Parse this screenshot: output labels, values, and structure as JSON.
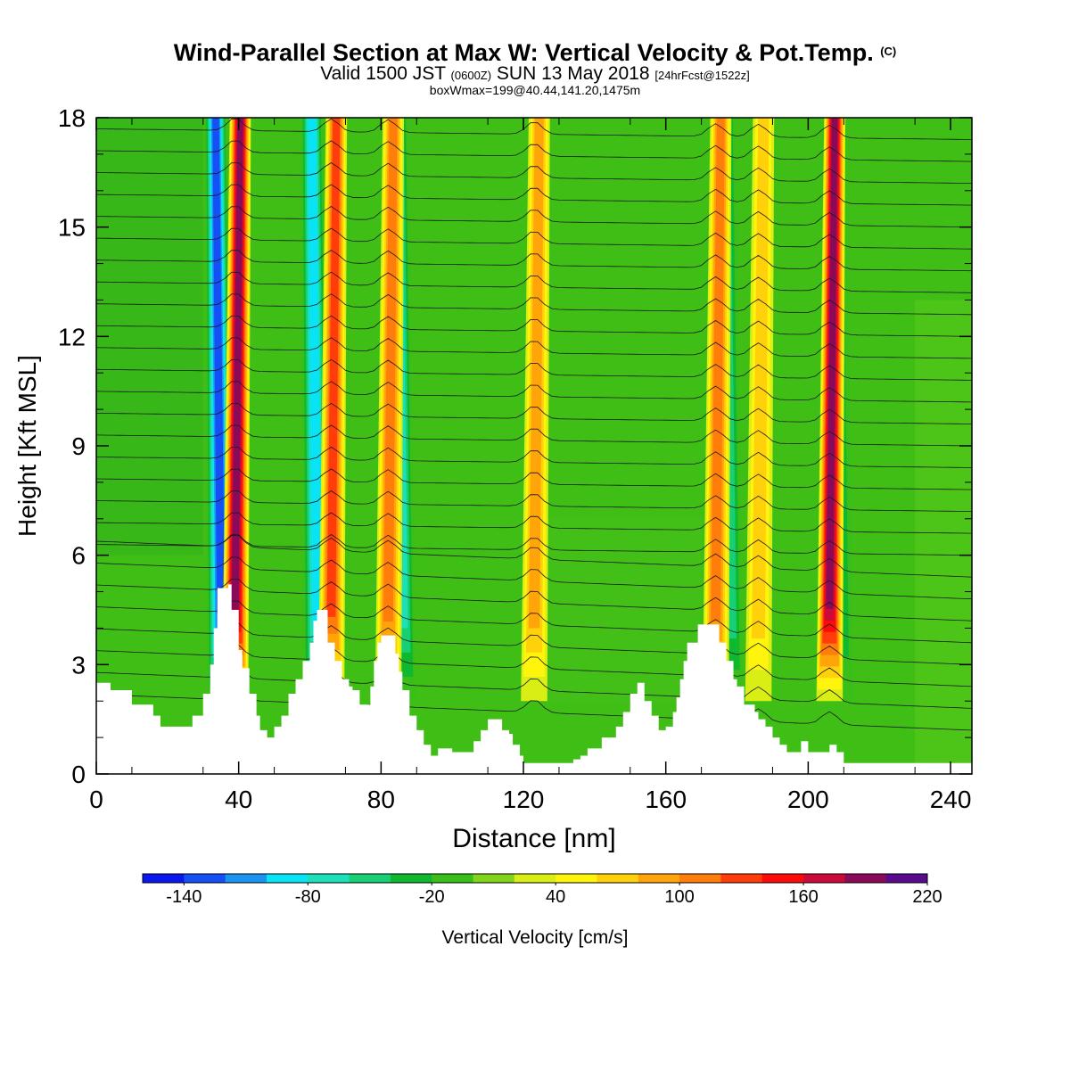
{
  "header": {
    "title_main": "Wind-Parallel Section at Max W: Vertical Velocity & Pot.Temp.",
    "title_mark": "(C)",
    "valid_a": "Valid 1500 JST",
    "valid_b": "(0600Z)",
    "valid_c": "SUN 13 May 2018",
    "valid_d": "[24hrFcst@1522z]",
    "boxinfo": "boxWmax=199@40.44,141.20,1475m"
  },
  "colorbar": {
    "label": "Vertical Velocity [cm/s]",
    "colors": [
      "#0a17ef",
      "#1450f5",
      "#1c93f0",
      "#08e3f5",
      "#1ce0b8",
      "#17cf74",
      "#10b830",
      "#39be1a",
      "#80d51a",
      "#d9ee14",
      "#fff50c",
      "#ffd10a",
      "#ffa50a",
      "#ff7d0a",
      "#ff3c0a",
      "#ff0a0a",
      "#cc0a3a",
      "#8a0a5a",
      "#5a0a8c"
    ],
    "tick_labels": [
      "-140",
      "-80",
      "-20",
      "40",
      "100",
      "160",
      "220"
    ]
  },
  "chart_data": {
    "type": "heatmap",
    "title": "Wind-Parallel Section at Max W: Vertical Velocity & Pot.Temp.",
    "xlabel": "Distance [nm]",
    "ylabel": "Height [Kft MSL]",
    "xlim": [
      0,
      246
    ],
    "ylim": [
      0,
      18
    ],
    "x_ticks": [
      0,
      40,
      80,
      120,
      160,
      200,
      240
    ],
    "y_ticks": [
      0,
      3,
      6,
      9,
      12,
      15,
      18
    ],
    "colorbar_levels": [
      -140,
      -80,
      -20,
      40,
      100,
      160,
      220
    ],
    "updraft_columns": [
      {
        "x": 39,
        "peak_cm_s": 190
      },
      {
        "x": 66,
        "peak_cm_s": 130
      },
      {
        "x": 82,
        "peak_cm_s": 110
      },
      {
        "x": 123,
        "peak_cm_s": 95
      },
      {
        "x": 174,
        "peak_cm_s": 100
      },
      {
        "x": 186,
        "peak_cm_s": 60
      },
      {
        "x": 206,
        "peak_cm_s": 199
      }
    ],
    "downdraft_columns": [
      {
        "x": 35,
        "min_cm_s": -140
      },
      {
        "x": 62,
        "min_cm_s": -110
      },
      {
        "x": 86,
        "min_cm_s": -90
      },
      {
        "x": 178,
        "min_cm_s": -60
      },
      {
        "x": 209,
        "min_cm_s": -50
      }
    ],
    "terrain_kft": [
      [
        0,
        2.5
      ],
      [
        4,
        2.3
      ],
      [
        8,
        2.3
      ],
      [
        10,
        1.9
      ],
      [
        14,
        1.9
      ],
      [
        16,
        1.6
      ],
      [
        18,
        1.3
      ],
      [
        22,
        1.3
      ],
      [
        26,
        1.3
      ],
      [
        27,
        1.6
      ],
      [
        30,
        2.2
      ],
      [
        32,
        3.0
      ],
      [
        33,
        4.0
      ],
      [
        34,
        5.1
      ],
      [
        37,
        5.2
      ],
      [
        38,
        4.5
      ],
      [
        40,
        3.4
      ],
      [
        41,
        2.9
      ],
      [
        43,
        2.2
      ],
      [
        45,
        1.6
      ],
      [
        46,
        1.2
      ],
      [
        48,
        1.0
      ],
      [
        50,
        1.3
      ],
      [
        52,
        1.6
      ],
      [
        54,
        2.2
      ],
      [
        56,
        2.6
      ],
      [
        58,
        3.1
      ],
      [
        60,
        3.6
      ],
      [
        61,
        4.2
      ],
      [
        62,
        4.5
      ],
      [
        64,
        4.5
      ],
      [
        65,
        3.6
      ],
      [
        67,
        3.1
      ],
      [
        69,
        2.6
      ],
      [
        71,
        2.4
      ],
      [
        72,
        2.3
      ],
      [
        74,
        1.9
      ],
      [
        76,
        1.9
      ],
      [
        77,
        2.4
      ],
      [
        78,
        3.1
      ],
      [
        79,
        3.6
      ],
      [
        80,
        3.8
      ],
      [
        83,
        3.8
      ],
      [
        84,
        3.3
      ],
      [
        85,
        2.8
      ],
      [
        86,
        2.3
      ],
      [
        88,
        1.6
      ],
      [
        90,
        1.2
      ],
      [
        92,
        0.8
      ],
      [
        94,
        0.5
      ],
      [
        96,
        0.7
      ],
      [
        98,
        0.7
      ],
      [
        100,
        0.6
      ],
      [
        102,
        0.6
      ],
      [
        104,
        0.6
      ],
      [
        106,
        0.9
      ],
      [
        108,
        1.2
      ],
      [
        110,
        1.5
      ],
      [
        112,
        1.5
      ],
      [
        114,
        1.2
      ],
      [
        116,
        1.1
      ],
      [
        117,
        0.8
      ],
      [
        118,
        0.8
      ],
      [
        119,
        0.5
      ],
      [
        120,
        0.3
      ],
      [
        122,
        0.3
      ],
      [
        124,
        0.3
      ],
      [
        128,
        0.3
      ],
      [
        132,
        0.3
      ],
      [
        134,
        0.4
      ],
      [
        136,
        0.5
      ],
      [
        138,
        0.7
      ],
      [
        140,
        0.7
      ],
      [
        142,
        1.0
      ],
      [
        144,
        1.0
      ],
      [
        146,
        1.3
      ],
      [
        148,
        1.7
      ],
      [
        150,
        2.2
      ],
      [
        152,
        2.5
      ],
      [
        154,
        2.0
      ],
      [
        156,
        1.6
      ],
      [
        158,
        1.2
      ],
      [
        160,
        1.3
      ],
      [
        162,
        1.7
      ],
      [
        163,
        2.1
      ],
      [
        164,
        2.6
      ],
      [
        165,
        3.1
      ],
      [
        166,
        3.6
      ],
      [
        168,
        3.6
      ],
      [
        169,
        4.1
      ],
      [
        172,
        4.1
      ],
      [
        174,
        4.1
      ],
      [
        175,
        3.6
      ],
      [
        177,
        3.1
      ],
      [
        179,
        2.6
      ],
      [
        180,
        2.4
      ],
      [
        182,
        1.9
      ],
      [
        184,
        1.9
      ],
      [
        185,
        1.7
      ],
      [
        186,
        1.5
      ],
      [
        188,
        1.3
      ],
      [
        190,
        1.0
      ],
      [
        192,
        0.8
      ],
      [
        194,
        0.6
      ],
      [
        196,
        0.6
      ],
      [
        198,
        0.9
      ],
      [
        200,
        0.6
      ],
      [
        202,
        0.6
      ],
      [
        204,
        0.6
      ],
      [
        206,
        0.8
      ],
      [
        208,
        0.6
      ],
      [
        210,
        0.3
      ],
      [
        212,
        0.3
      ],
      [
        216,
        0.3
      ],
      [
        220,
        0.3
      ],
      [
        225,
        0.3
      ],
      [
        230,
        0.3
      ],
      [
        235,
        0.3
      ],
      [
        240,
        0.3
      ],
      [
        246,
        0.3
      ]
    ]
  }
}
